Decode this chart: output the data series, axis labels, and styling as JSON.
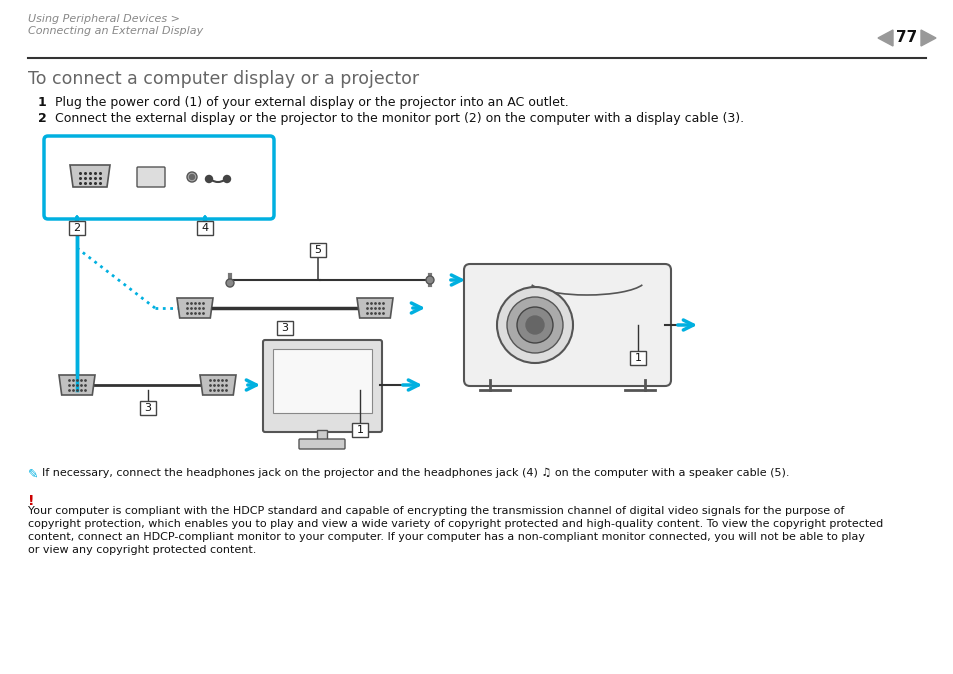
{
  "page_bg": "#ffffff",
  "header_text1": "Using Peripheral Devices >",
  "header_text2": "Connecting an External Display",
  "page_num": "77",
  "header_color": "#888888",
  "title": "To connect a computer display or a projector",
  "title_color": "#666666",
  "title_fontsize": 12.5,
  "step1_num": "1",
  "step1_text": "Plug the power cord (1) of your external display or the projector into an AC outlet.",
  "step2_num": "2",
  "step2_text": "Connect the external display or the projector to the monitor port (2) on the computer with a display cable (3).",
  "note_text": "If necessary, connect the headphones jack on the projector and the headphones jack (4) ♫ on the computer with a speaker cable (5).",
  "warning_color": "#cc0000",
  "warning_text": "Your computer is compliant with the HDCP standard and capable of encrypting the transmission channel of digital video signals for the purpose of copyright protection, which enables you to play and view a wide variety of copyright protected and high-quality content. To view the copyright protected content, connect an HDCP-compliant monitor to your computer. If your computer has a non-compliant monitor connected, you will not be able to play or view any copyright protected content.",
  "cyan": "#00b0e0",
  "gray_text": "#555555",
  "dark": "#333333",
  "light_gray": "#cccccc",
  "med_gray": "#999999",
  "header_fs": 8,
  "step_fs": 9,
  "body_fs": 8,
  "note_fs": 8
}
